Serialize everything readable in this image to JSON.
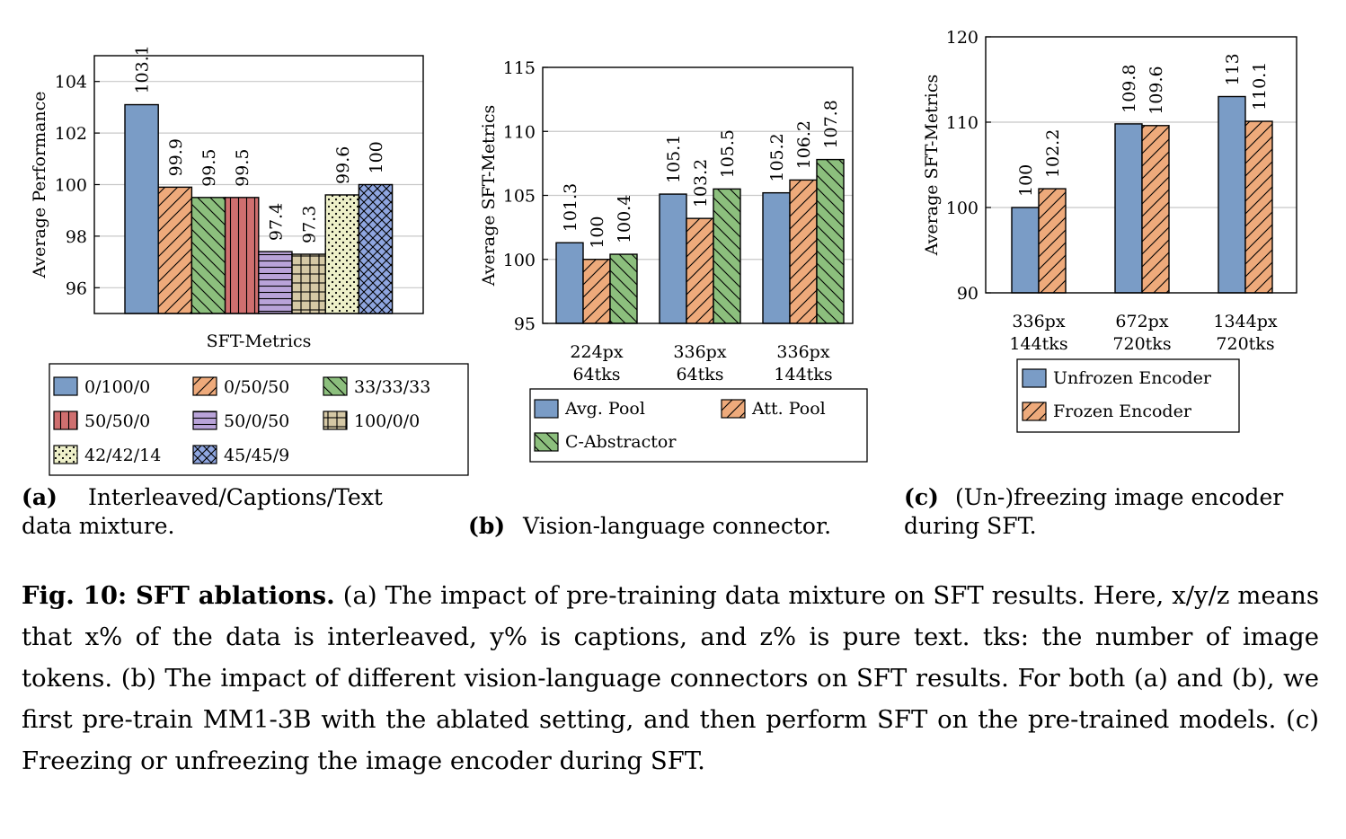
{
  "colors": {
    "blue": "#7a9cc6",
    "orange": "#eeaa7b",
    "green": "#8cbf7d",
    "red": "#cf6f6f",
    "purple": "#b9a3d9",
    "tan": "#d5c8a5",
    "cream": "#eef0c9",
    "lightblue": "#8fa6e0"
  },
  "chart_data": [
    {
      "type": "bar",
      "ylabel": "Average Performance",
      "xlabel": "SFT-Metrics",
      "ylim": [
        95,
        105
      ],
      "yticks": [
        96,
        98,
        100,
        102,
        104
      ],
      "categories": [
        "SFT-Metrics"
      ],
      "series": [
        {
          "name": "0/100/0",
          "values": [
            103.1
          ],
          "label": "103.1",
          "color": "blue",
          "pattern": "solid"
        },
        {
          "name": "0/50/50",
          "values": [
            99.9
          ],
          "label": "99.9",
          "color": "orange",
          "pattern": "ne"
        },
        {
          "name": "33/33/33",
          "values": [
            99.5
          ],
          "label": "99.5",
          "color": "green",
          "pattern": "nw"
        },
        {
          "name": "50/50/0",
          "values": [
            99.5
          ],
          "label": "99.5",
          "color": "red",
          "pattern": "vert"
        },
        {
          "name": "50/0/50",
          "values": [
            97.4
          ],
          "label": "97.4",
          "color": "purple",
          "pattern": "horiz"
        },
        {
          "name": "100/0/0",
          "values": [
            97.3
          ],
          "label": "97.3",
          "color": "tan",
          "pattern": "grid"
        },
        {
          "name": "42/42/14",
          "values": [
            99.6
          ],
          "label": "99.6",
          "color": "cream",
          "pattern": "dots"
        },
        {
          "name": "45/45/9",
          "values": [
            100
          ],
          "label": "100",
          "color": "lightblue",
          "pattern": "cross"
        }
      ],
      "legend_position": "bottom",
      "caption_tag": "(a)",
      "caption_lines": [
        "Interleaved/Captions/Text",
        "data mixture."
      ]
    },
    {
      "type": "bar",
      "ylabel": "Average SFT-Metrics",
      "ylim": [
        95,
        115
      ],
      "yticks": [
        95,
        100,
        105,
        110,
        115
      ],
      "categories": [
        [
          "224px",
          "64tks"
        ],
        [
          "336px",
          "64tks"
        ],
        [
          "336px",
          "144tks"
        ]
      ],
      "series": [
        {
          "name": "Avg. Pool",
          "values": [
            101.3,
            105.1,
            105.2
          ],
          "labels": [
            "101.3",
            "105.1",
            "105.2"
          ],
          "color": "blue",
          "pattern": "solid"
        },
        {
          "name": "Att. Pool",
          "values": [
            100,
            103.2,
            106.2
          ],
          "labels": [
            "100",
            "103.2",
            "106.2"
          ],
          "color": "orange",
          "pattern": "ne"
        },
        {
          "name": "C-Abstractor",
          "values": [
            100.4,
            105.5,
            107.8
          ],
          "labels": [
            "100.4",
            "105.5",
            "107.8"
          ],
          "color": "green",
          "pattern": "nw"
        }
      ],
      "legend_position": "bottom",
      "caption_tag": "(b)",
      "caption_lines": [
        "Vision-language connector."
      ]
    },
    {
      "type": "bar",
      "ylabel": "Average SFT-Metrics",
      "ylim": [
        90,
        120
      ],
      "yticks": [
        90,
        100,
        110,
        120
      ],
      "categories": [
        [
          "336px",
          "144tks"
        ],
        [
          "672px",
          "720tks"
        ],
        [
          "1344px",
          "720tks"
        ]
      ],
      "series": [
        {
          "name": "Unfrozen Encoder",
          "values": [
            100,
            109.8,
            113
          ],
          "labels": [
            "100",
            "109.8",
            "113"
          ],
          "color": "blue",
          "pattern": "solid"
        },
        {
          "name": "Frozen Encoder",
          "values": [
            102.2,
            109.6,
            110.1
          ],
          "labels": [
            "102.2",
            "109.6",
            "110.1"
          ],
          "color": "orange",
          "pattern": "ne"
        }
      ],
      "legend_position": "bottom",
      "caption_tag": "(c)",
      "caption_lines": [
        "(Un-)freezing image encoder",
        "during SFT."
      ]
    }
  ],
  "caption": {
    "label": "Fig. 10: SFT ablations.",
    "text": " (a) The impact of pre-training data mixture on SFT results. Here, x/y/z means that x% of the data is interleaved, y% is captions, and z% is pure text. tks: the number of image tokens. (b) The impact of different vision-language connectors on SFT results. For both (a) and (b), we first pre-train MM1-3B with the ablated setting, and then perform SFT on the pre-trained models. (c) Freezing or unfreezing the image encoder during SFT."
  }
}
